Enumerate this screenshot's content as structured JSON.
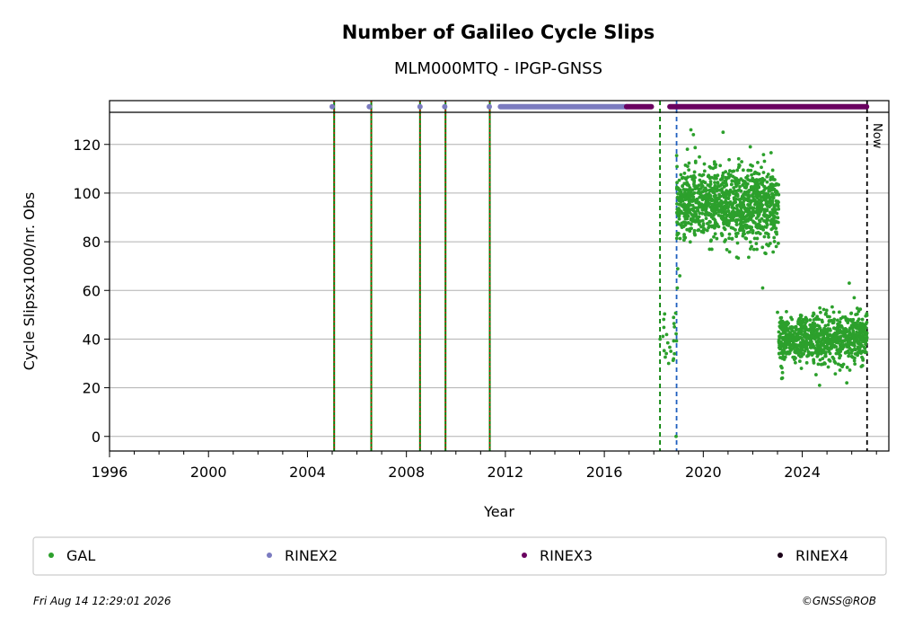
{
  "chart_data": {
    "type": "scatter",
    "title": "Number of Galileo Cycle Slips",
    "subtitle": "MLM000MTQ - IPGP-GNSS",
    "xlabel": "Year",
    "ylabel": "Cycle Slipsx1000/nr. Obs",
    "xlim": [
      1996,
      2027.5
    ],
    "ylim": [
      -6,
      138
    ],
    "x_ticks": [
      1996,
      2000,
      2004,
      2008,
      2012,
      2016,
      2020,
      2024
    ],
    "y_ticks": [
      0,
      20,
      40,
      60,
      80,
      100,
      120
    ],
    "grid": "horizontal",
    "now_label": "Now",
    "now_year": 2026.62,
    "equipment_change_lines": [
      2005.08,
      2006.58,
      2008.55,
      2009.58,
      2011.37
    ],
    "green_dashed_lines": [
      2018.25
    ],
    "blue_dashed_lines": [
      2018.92
    ],
    "rinex_top_markers": {
      "y": 135.5,
      "rinex2_points": [
        2005.0,
        2006.5,
        2008.55,
        2009.55,
        2011.35
      ],
      "rinex2_segments": [
        [
          2011.8,
          2016.9
        ]
      ],
      "rinex3_segments": [
        [
          2016.9,
          2017.9
        ],
        [
          2018.65,
          2026.6
        ]
      ]
    },
    "series": [
      {
        "name": "GAL",
        "color": "#2ca02c",
        "segments": [
          {
            "x_range": [
              2018.25,
              2018.92
            ],
            "mean": 42,
            "spread": 9,
            "count": 22
          },
          {
            "x_range": [
              2018.92,
              2023.05
            ],
            "mean": 95,
            "spread": 10,
            "count": 1150
          },
          {
            "x_range": [
              2023.05,
              2026.62
            ],
            "mean": 40,
            "spread": 6.5,
            "count": 900
          }
        ],
        "extra_points": [
          {
            "x": 2018.9,
            "y": 0
          },
          {
            "x": 2018.6,
            "y": 30
          },
          {
            "x": 2018.95,
            "y": 61
          },
          {
            "x": 2019.05,
            "y": 66
          },
          {
            "x": 2019.5,
            "y": 126
          },
          {
            "x": 2019.6,
            "y": 124
          },
          {
            "x": 2020.8,
            "y": 125
          },
          {
            "x": 2021.9,
            "y": 119
          },
          {
            "x": 2022.4,
            "y": 61
          },
          {
            "x": 2023.0,
            "y": 51
          },
          {
            "x": 2023.2,
            "y": 24
          },
          {
            "x": 2024.7,
            "y": 21
          },
          {
            "x": 2025.8,
            "y": 22
          },
          {
            "x": 2025.9,
            "y": 63
          },
          {
            "x": 2026.1,
            "y": 57
          }
        ]
      }
    ],
    "legend": {
      "placement": "bottom",
      "entries": [
        {
          "label": "GAL",
          "color": "#2ca02c"
        },
        {
          "label": "RINEX2",
          "color": "#7b7bc0"
        },
        {
          "label": "RINEX3",
          "color": "#6a0060"
        },
        {
          "label": "RINEX4",
          "color": "#1a0018"
        }
      ]
    }
  },
  "footer": {
    "timestamp": "Fri Aug 14 12:29:01 2026",
    "credit": "©GNSS@ROB"
  }
}
